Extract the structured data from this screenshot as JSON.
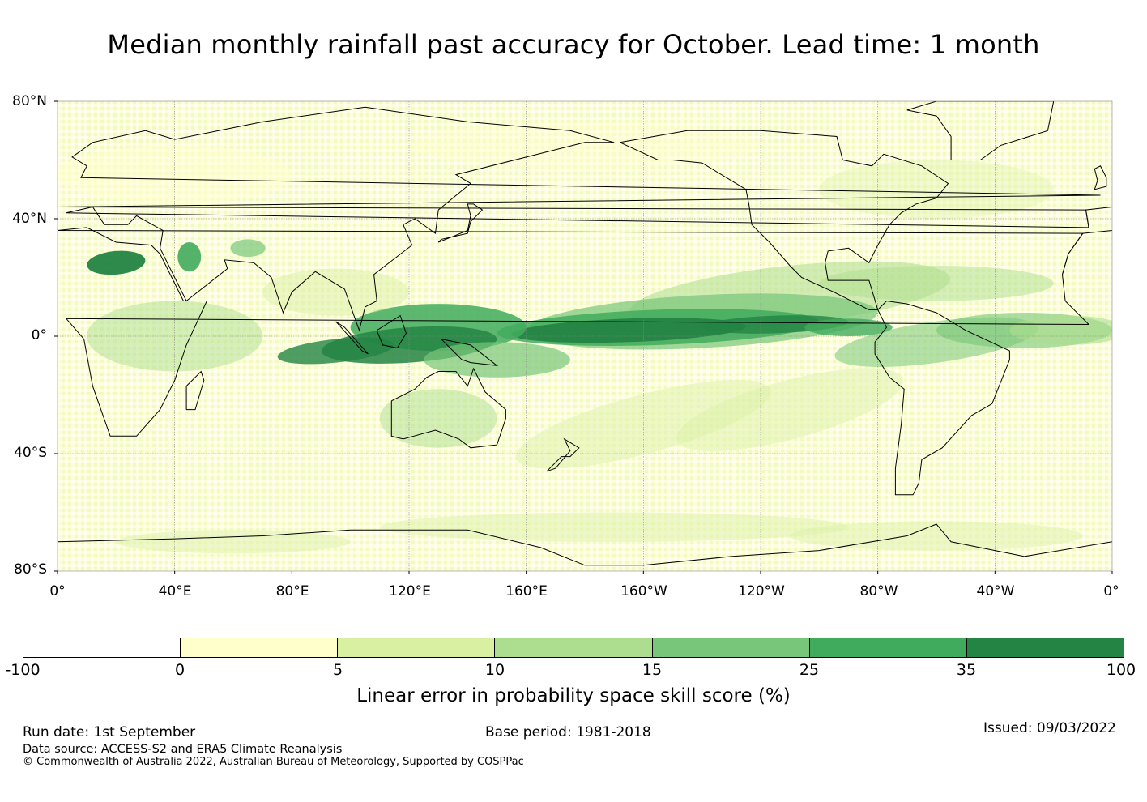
{
  "title": "Median monthly rainfall past accuracy for October. Lead time: 1 month",
  "map": {
    "lat_ticks": [
      "80°N",
      "40°N",
      "0°",
      "40°S",
      "80°S"
    ],
    "lon_ticks": [
      "0°",
      "40°E",
      "80°E",
      "120°E",
      "160°E",
      "160°W",
      "120°W",
      "80°W",
      "40°W",
      "0°"
    ],
    "lat_range": [
      -80,
      80
    ],
    "lon_range": [
      0,
      360
    ],
    "central_longitude": 180,
    "grid": true,
    "high_skill_regions": [
      {
        "name": "Equatorial Pacific",
        "level": "35-100"
      },
      {
        "name": "Maritime Continent",
        "level": "25-35"
      },
      {
        "name": "Eastern Indian Ocean",
        "level": "25-35"
      }
    ]
  },
  "colorbar": {
    "title": "Linear error in probability space skill score (%)",
    "labels": [
      "-100",
      "0",
      "5",
      "10",
      "15",
      "25",
      "35",
      "100"
    ],
    "colors": [
      "#ffffff",
      "#ffffcc",
      "#d9f0a3",
      "#addd8e",
      "#78c679",
      "#41ab5d",
      "#238443"
    ]
  },
  "footer": {
    "run_date": "Run date: 1st September",
    "base_period": "Base period: 1981-2018",
    "issued": "Issued: 09/03/2022",
    "data_source": "Data source: ACCESS-S2 and ERA5 Climate Reanalysis",
    "copyright": "© Commonwealth of Australia 2022, Australian Bureau of Meteorology, Supported by COSPPac"
  }
}
